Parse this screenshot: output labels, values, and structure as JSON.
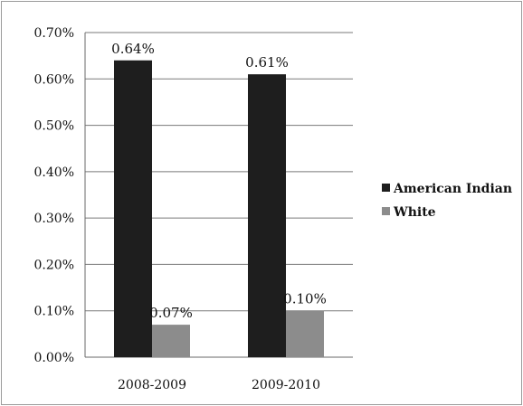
{
  "chart_data": {
    "type": "bar",
    "categories": [
      "2008-2009",
      "2009-2010"
    ],
    "series": [
      {
        "name": "American Indian",
        "values": [
          0.64,
          0.61
        ],
        "labels": [
          "0.64%",
          "0.61%"
        ],
        "color": "#1e1e1e"
      },
      {
        "name": "White",
        "values": [
          0.07,
          0.1
        ],
        "labels": [
          "0.07%",
          "0.10%"
        ],
        "color": "#8c8c8c"
      }
    ],
    "ylim": [
      0,
      0.7
    ],
    "yticks": [
      0.0,
      0.1,
      0.2,
      0.3,
      0.4,
      0.5,
      0.6,
      0.7
    ],
    "ytick_labels": [
      "0.00%",
      "0.10%",
      "0.20%",
      "0.30%",
      "0.40%",
      "0.50%",
      "0.60%",
      "0.70%"
    ],
    "grid": true,
    "legend_position": "right",
    "title": "",
    "xlabel": "",
    "ylabel": ""
  }
}
